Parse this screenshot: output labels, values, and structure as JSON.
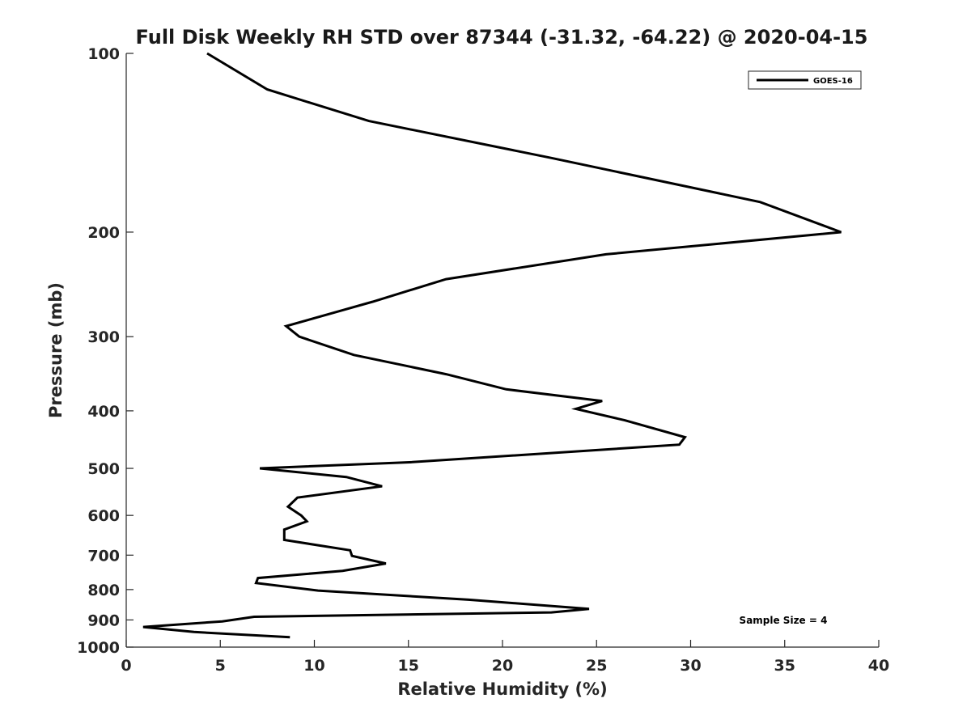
{
  "chart_data": {
    "type": "line",
    "title": "Full Disk Weekly RH STD over 87344 (-31.32, -64.22) @ 2020-04-15",
    "xlabel": "Relative Humidity (%)",
    "ylabel": "Pressure (mb)",
    "xlim": [
      0,
      40
    ],
    "ylim": [
      1000,
      100
    ],
    "yscale": "log",
    "xticks": [
      0,
      5,
      10,
      15,
      20,
      25,
      30,
      35,
      40
    ],
    "xtick_labels": [
      "0",
      "5",
      "10",
      "15",
      "20",
      "25",
      "30",
      "35",
      "40"
    ],
    "yticks": [
      100,
      200,
      300,
      400,
      500,
      600,
      700,
      800,
      900,
      1000
    ],
    "ytick_labels": [
      "100",
      "200",
      "300",
      "400",
      "500",
      "600",
      "700",
      "800",
      "900",
      "1000"
    ],
    "grid": false,
    "legend_position": "top-right",
    "series": [
      {
        "name": "GOES-16",
        "color": "#000000",
        "x": [
          4.3,
          7.5,
          12.9,
          22.6,
          33.7,
          38.0,
          25.5,
          17.0,
          13.1,
          8.5,
          9.2,
          12.1,
          17.0,
          20.2,
          25.3,
          23.9,
          26.5,
          29.7,
          29.4,
          15.2,
          7.1,
          11.7,
          13.6,
          9.1,
          8.6,
          9.3,
          9.6,
          8.4,
          8.4,
          11.9,
          12.0,
          13.8,
          11.5,
          7.0,
          6.9,
          10.2,
          18.2,
          24.6,
          22.6,
          6.8,
          5.1,
          0.9,
          3.6,
          8.7
        ],
        "y": [
          100,
          115,
          130,
          150,
          178,
          200,
          218,
          240,
          262,
          288,
          300,
          322,
          347,
          368,
          385,
          397,
          415,
          443,
          456,
          488,
          500,
          517,
          536,
          560,
          580,
          600,
          614,
          634,
          660,
          687,
          702,
          723,
          744,
          765,
          780,
          803,
          832,
          862,
          874,
          889,
          905,
          925,
          943,
          962
        ]
      }
    ],
    "annotation": "Sample Size = 4"
  }
}
